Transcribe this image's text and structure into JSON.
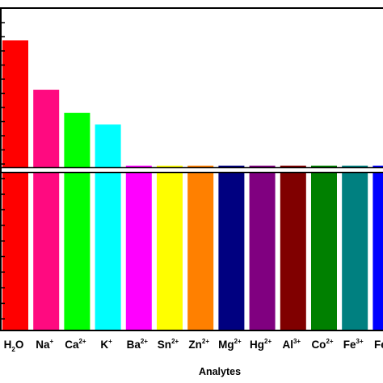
{
  "chart_data": {
    "type": "bar",
    "title": "",
    "xlabel": "Analytes",
    "ylabel": "",
    "axis_break": true,
    "grid": false,
    "legend": "none",
    "categories": [
      {
        "base": "H",
        "sub": "2",
        "tail": "O",
        "sup": ""
      },
      {
        "base": "Na",
        "sub": "",
        "tail": "",
        "sup": "+"
      },
      {
        "base": "Ca",
        "sub": "",
        "tail": "",
        "sup": "2+"
      },
      {
        "base": "K",
        "sub": "",
        "tail": "",
        "sup": "+"
      },
      {
        "base": "Ba",
        "sub": "",
        "tail": "",
        "sup": "2+"
      },
      {
        "base": "Sn",
        "sub": "",
        "tail": "",
        "sup": "2+"
      },
      {
        "base": "Zn",
        "sub": "",
        "tail": "",
        "sup": "2+"
      },
      {
        "base": "Mg",
        "sub": "",
        "tail": "",
        "sup": "2+"
      },
      {
        "base": "Hg",
        "sub": "",
        "tail": "",
        "sup": "2+"
      },
      {
        "base": "Al",
        "sub": "",
        "tail": "",
        "sup": "3+"
      },
      {
        "base": "Co",
        "sub": "",
        "tail": "",
        "sup": "2+"
      },
      {
        "base": "Fe",
        "sub": "",
        "tail": "",
        "sup": "3+"
      },
      {
        "base": "Fe",
        "sub": "",
        "tail": "",
        "sup": "2+"
      }
    ],
    "values": [
      100,
      83,
      75,
      71,
      56,
      45,
      21,
      21,
      19,
      17,
      10,
      6,
      2
    ],
    "ylim": [
      0,
      100
    ],
    "colors": [
      "#ff0000",
      "#ff0a80",
      "#00ff00",
      "#00ffff",
      "#ff00ff",
      "#ffff00",
      "#ff8000",
      "#000080",
      "#800080",
      "#800000",
      "#008000",
      "#008080",
      "#0000ff"
    ]
  }
}
